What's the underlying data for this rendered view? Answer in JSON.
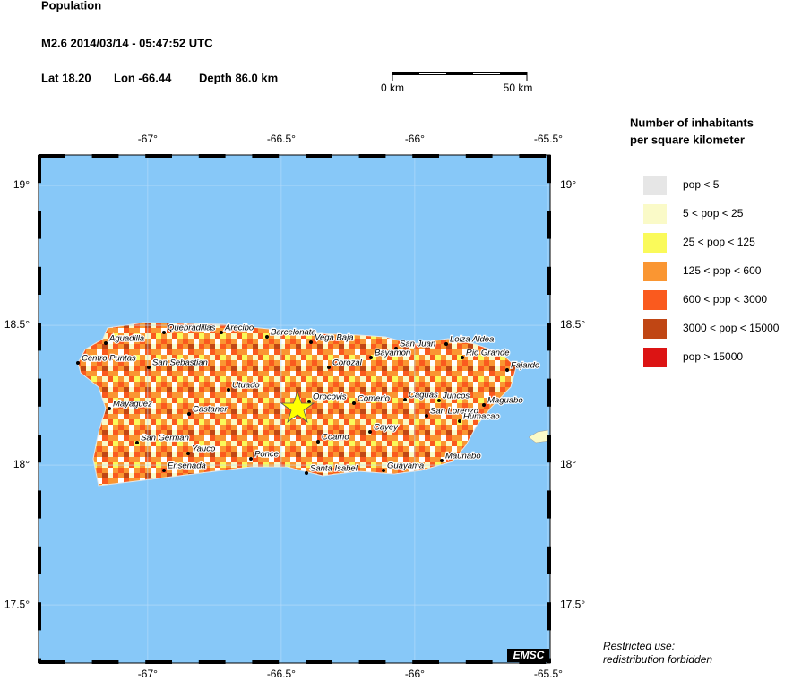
{
  "header": {
    "title": "Population",
    "event": "M2.6  2014/03/14 - 05:47:52 UTC",
    "lat": "Lat 18.20",
    "lon": "Lon -66.44",
    "depth": "Depth  86.0 km"
  },
  "scale_bar": {
    "start": "0 km",
    "end": "50 km"
  },
  "map": {
    "xlim": [
      -67.409,
      -65.493
    ],
    "ylim": [
      17.292,
      19.109
    ],
    "xticks": [
      {
        "value": -67,
        "label": "-67°"
      },
      {
        "value": -66.5,
        "label": "-66.5°"
      },
      {
        "value": -66,
        "label": "-66°"
      },
      {
        "value": -65.5,
        "label": "-65.5°"
      }
    ],
    "yticks": [
      {
        "value": 19,
        "label": "19°"
      },
      {
        "value": 18.5,
        "label": "18.5°"
      },
      {
        "value": 18,
        "label": "18°"
      },
      {
        "value": 17.5,
        "label": "17.5°"
      }
    ],
    "cities": [
      "Aguadilla",
      "Quebradillas",
      "Arecibo",
      "Barcelonata",
      "Vega Baja",
      "Loiza Aldea",
      "Centro Puntas",
      "San Sebastian",
      "San Juan",
      "Bayamon",
      "Rio Grande",
      "Corozal",
      "Fajardo",
      "Utuado",
      "Orocovis",
      "Comerio",
      "Caguas",
      "Juncos",
      "Maguabo",
      "Mayaguez",
      "Castaner",
      "San Lorenzo",
      "Humacao",
      "Cayey",
      "Coamo",
      "San German",
      "Yauco",
      "Ponce",
      "Maunabo",
      "Ensenada",
      "Santa Isabel",
      "Guayama"
    ],
    "logo": "EMSC"
  },
  "legend": {
    "title": [
      "Number of inhabitants",
      "per square kilometer"
    ],
    "items": [
      {
        "label": "pop < 5",
        "color": "#e6e6e6"
      },
      {
        "label": "5 < pop < 25",
        "color": "#fafac8"
      },
      {
        "label": "25 < pop < 125",
        "color": "#fafa5a"
      },
      {
        "label": "125 < pop < 600",
        "color": "#fa9632"
      },
      {
        "label": "600 < pop < 3000",
        "color": "#fa5a1e"
      },
      {
        "label": "3000 < pop < 15000",
        "color": "#c04614"
      },
      {
        "label": "pop > 15000",
        "color": "#dc1414"
      }
    ]
  },
  "note": [
    "Restricted use:",
    "redistribution forbidden"
  ]
}
